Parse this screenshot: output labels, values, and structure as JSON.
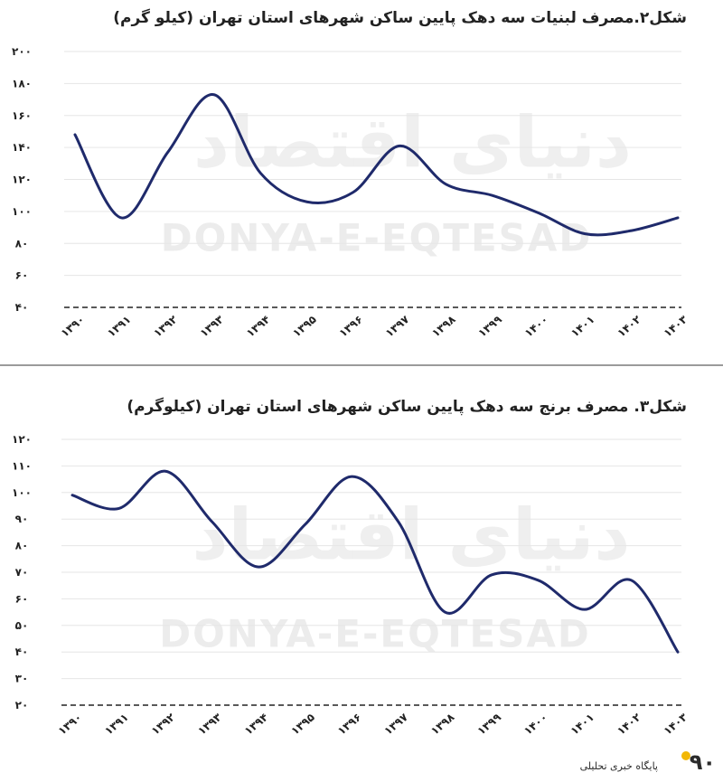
{
  "watermark": {
    "latin": "DONYA-E-EQTESAD",
    "persian": "دنیای اقتصاد"
  },
  "colors": {
    "line": "#1f2a6b",
    "text": "#222222"
  },
  "footer": {
    "mark": "۹۰",
    "subtitle": "پایگاه خبری تحلیلی"
  },
  "chart_data": [
    {
      "type": "line",
      "title": "شکل۲.مصرف لبنیات سه دهک پایین ساکن شهرهای استان تهران (کیلو گرم)",
      "categories": [
        "۱۳۹۰",
        "۱۳۹۱",
        "۱۳۹۲",
        "۱۳۹۳",
        "۱۳۹۴",
        "۱۳۹۵",
        "۱۳۹۶",
        "۱۳۹۷",
        "۱۳۹۸",
        "۱۳۹۹",
        "۱۴۰۰",
        "۱۴۰۱",
        "۱۴۰۲",
        "۱۴۰۳"
      ],
      "values": [
        148,
        96,
        137,
        173,
        124,
        106,
        112,
        141,
        117,
        110,
        99,
        86,
        88,
        96
      ],
      "yticks": [
        40,
        60,
        80,
        100,
        120,
        140,
        160,
        180,
        200
      ],
      "ytick_labels": [
        "۴۰",
        "۶۰",
        "۸۰",
        "۱۰۰",
        "۱۲۰",
        "۱۴۰",
        "۱۶۰",
        "۱۸۰",
        "۲۰۰"
      ],
      "ylim": [
        40,
        200
      ],
      "xlabel": "",
      "ylabel": ""
    },
    {
      "type": "line",
      "title": "شکل۳. مصرف برنج سه دهک پایین ساکن شهرهای استان تهران (کیلوگرم)",
      "categories": [
        "۱۳۹۰",
        "۱۳۹۱",
        "۱۳۹۲",
        "۱۳۹۳",
        "۱۳۹۴",
        "۱۳۹۵",
        "۱۳۹۶",
        "۱۳۹۷",
        "۱۳۹۸",
        "۱۳۹۹",
        "۱۴۰۰",
        "۱۴۰۱",
        "۱۴۰۲",
        "۱۴۰۳"
      ],
      "values": [
        99,
        94,
        108,
        89,
        72,
        88,
        106,
        89,
        55,
        69,
        67,
        56,
        67,
        40
      ],
      "yticks": [
        20,
        30,
        40,
        50,
        60,
        70,
        80,
        90,
        100,
        110,
        120
      ],
      "ytick_labels": [
        "۲۰",
        "۳۰",
        "۴۰",
        "۵۰",
        "۶۰",
        "۷۰",
        "۸۰",
        "۹۰",
        "۱۰۰",
        "۱۱۰",
        "۱۲۰"
      ],
      "ylim": [
        20,
        120
      ],
      "xlabel": "",
      "ylabel": ""
    }
  ]
}
